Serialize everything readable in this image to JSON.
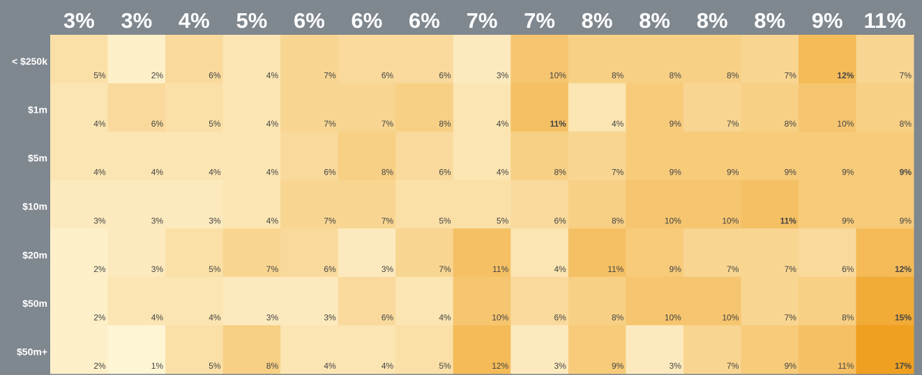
{
  "chart_data": {
    "type": "heatmap",
    "columns": [
      "3%",
      "3%",
      "4%",
      "5%",
      "6%",
      "6%",
      "6%",
      "7%",
      "7%",
      "8%",
      "8%",
      "8%",
      "8%",
      "9%",
      "11%"
    ],
    "rows": [
      "< $250k",
      "$1m",
      "$5m",
      "$10m",
      "$20m",
      "$50m",
      "$50m+"
    ],
    "values": [
      [
        5,
        2,
        6,
        4,
        7,
        6,
        6,
        3,
        10,
        8,
        8,
        8,
        7,
        12,
        7
      ],
      [
        4,
        6,
        5,
        4,
        7,
        7,
        8,
        4,
        11,
        4,
        9,
        7,
        8,
        10,
        8
      ],
      [
        4,
        4,
        4,
        4,
        6,
        8,
        6,
        4,
        8,
        7,
        9,
        9,
        9,
        9,
        9
      ],
      [
        3,
        3,
        3,
        4,
        7,
        7,
        5,
        5,
        6,
        8,
        10,
        10,
        11,
        9,
        9
      ],
      [
        2,
        3,
        5,
        7,
        6,
        3,
        7,
        11,
        4,
        11,
        9,
        7,
        7,
        6,
        12
      ],
      [
        2,
        4,
        4,
        3,
        3,
        6,
        4,
        10,
        6,
        8,
        10,
        10,
        7,
        8,
        15
      ],
      [
        2,
        1,
        5,
        8,
        4,
        4,
        5,
        12,
        3,
        9,
        3,
        7,
        9,
        11,
        17
      ]
    ],
    "value_labels": [
      [
        "5%",
        "2%",
        "6%",
        "4%",
        "7%",
        "6%",
        "6%",
        "3%",
        "10%",
        "8%",
        "8%",
        "8%",
        "7%",
        "12%",
        "7%"
      ],
      [
        "4%",
        "6%",
        "5%",
        "4%",
        "7%",
        "7%",
        "8%",
        "4%",
        "11%",
        "4%",
        "9%",
        "7%",
        "8%",
        "10%",
        "8%"
      ],
      [
        "4%",
        "4%",
        "4%",
        "4%",
        "6%",
        "8%",
        "6%",
        "4%",
        "8%",
        "7%",
        "9%",
        "9%",
        "9%",
        "9%",
        "9%"
      ],
      [
        "3%",
        "3%",
        "3%",
        "4%",
        "7%",
        "7%",
        "5%",
        "5%",
        "6%",
        "8%",
        "10%",
        "10%",
        "11%",
        "9%",
        "9%"
      ],
      [
        "2%",
        "3%",
        "5%",
        "7%",
        "6%",
        "3%",
        "7%",
        "11%",
        "4%",
        "11%",
        "9%",
        "7%",
        "7%",
        "6%",
        "12%"
      ],
      [
        "2%",
        "4%",
        "4%",
        "3%",
        "3%",
        "6%",
        "4%",
        "10%",
        "6%",
        "8%",
        "10%",
        "10%",
        "7%",
        "8%",
        "15%"
      ],
      [
        "2%",
        "1%",
        "5%",
        "8%",
        "4%",
        "4%",
        "5%",
        "12%",
        "3%",
        "9%",
        "3%",
        "7%",
        "9%",
        "11%",
        "17%"
      ]
    ],
    "colors": [
      "#fef5d4",
      "#efa020"
    ]
  }
}
